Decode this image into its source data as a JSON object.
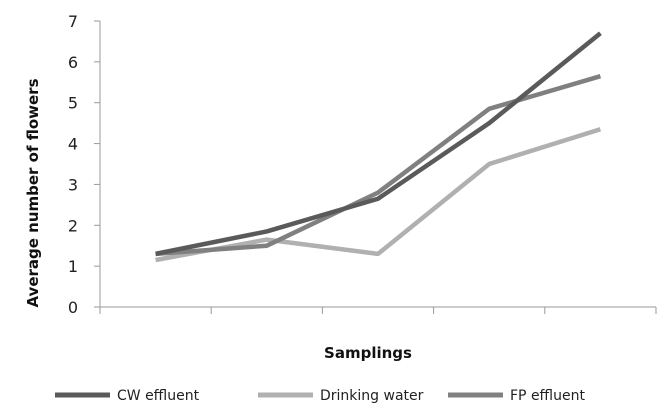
{
  "chart_data": {
    "type": "line",
    "title": "",
    "xlabel": "Samplings",
    "ylabel": "Average number of flowers",
    "categories": [
      "",
      "",
      "",
      "",
      ""
    ],
    "ylim": [
      0,
      7
    ],
    "yticks": [
      "0",
      "1",
      "2",
      "3",
      "4",
      "5",
      "6",
      "7"
    ],
    "grid": false,
    "legend_position": "bottom",
    "series": [
      {
        "name": "CW effluent",
        "color": "#5a5a5a",
        "values": [
          1.3,
          1.85,
          2.65,
          4.5,
          6.7
        ]
      },
      {
        "name": "Drinking water",
        "color": "#b0b0b0",
        "values": [
          1.15,
          1.65,
          1.3,
          3.5,
          4.35
        ]
      },
      {
        "name": "FP effluent",
        "color": "#808080",
        "values": [
          1.3,
          1.5,
          2.8,
          4.85,
          5.65
        ]
      }
    ]
  }
}
